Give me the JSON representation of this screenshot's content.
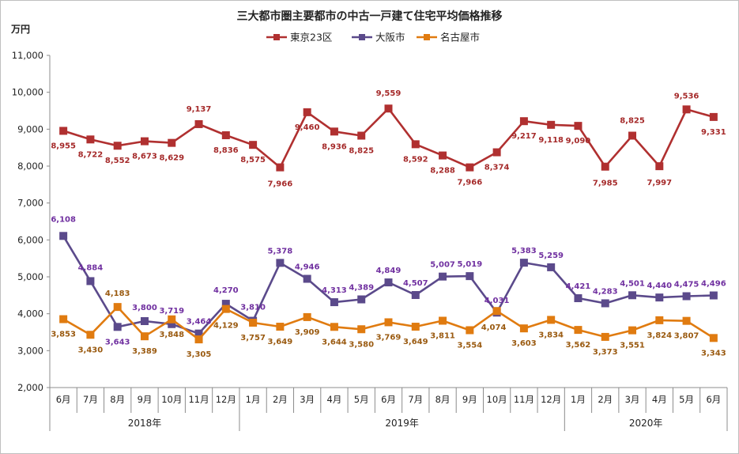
{
  "chart_data": {
    "type": "line",
    "title": "三大都市圏主要都市の中古一戸建て住宅平均価格推移",
    "ylabel": "万円",
    "ylim": [
      2000,
      11000
    ],
    "yticks": [
      "2,000",
      "3,000",
      "4,000",
      "5,000",
      "6,000",
      "7,000",
      "8,000",
      "9,000",
      "10,000",
      "11,000"
    ],
    "yticks_values": [
      2000,
      3000,
      4000,
      5000,
      6000,
      7000,
      8000,
      9000,
      10000,
      11000
    ],
    "grid": false,
    "legend_position": "top",
    "months": [
      "6月",
      "7月",
      "8月",
      "9月",
      "10月",
      "11月",
      "12月",
      "1月",
      "2月",
      "3月",
      "4月",
      "5月",
      "6月",
      "7月",
      "8月",
      "9月",
      "10月",
      "11月",
      "12月",
      "1月",
      "2月",
      "3月",
      "4月",
      "5月",
      "6月"
    ],
    "years": [
      {
        "label": "2018年",
        "start": 0,
        "end": 6
      },
      {
        "label": "2019年",
        "start": 7,
        "end": 18
      },
      {
        "label": "2020年",
        "start": 19,
        "end": 24
      }
    ],
    "series": [
      {
        "name": "東京23区",
        "color": "#b03030",
        "label_color": "#a52a2a",
        "values": [
          8955,
          8722,
          8552,
          8673,
          8629,
          9137,
          8836,
          8575,
          7966,
          9460,
          8936,
          8825,
          9559,
          8592,
          8288,
          7966,
          8374,
          9217,
          9118,
          9090,
          7985,
          8825,
          7997,
          9536,
          9331
        ],
        "labels": [
          "8,955",
          "8,722",
          "8,552",
          "8,673",
          "8,629",
          "9,137",
          "8,836",
          "8,575",
          "7,966",
          "9,460",
          "8,936",
          "8,825",
          "9,559",
          "8,592",
          "8,288",
          "7,966",
          "8,374",
          "9,217",
          "9,118",
          "9,090",
          "7,985",
          "8,825",
          "7,997",
          "9,536",
          "9,331"
        ]
      },
      {
        "name": "大阪市",
        "color": "#5b4a8b",
        "label_color": "#7030a0",
        "values": [
          6108,
          4884,
          3643,
          3800,
          3719,
          3464,
          4270,
          3810,
          5378,
          4946,
          4313,
          4389,
          4849,
          4507,
          5007,
          5019,
          4031,
          5383,
          5259,
          4421,
          4283,
          4501,
          4440,
          4475,
          4496
        ],
        "labels": [
          "6,108",
          "4,884",
          "3,643",
          "3,800",
          "3,719",
          "3,464",
          "4,270",
          "3,810",
          "5,378",
          "4,946",
          "4,313",
          "4,389",
          "4,849",
          "4,507",
          "5,007",
          "5,019",
          "4,031",
          "5,383",
          "5,259",
          "4,421",
          "4,283",
          "4,501",
          "4,440",
          "4,475",
          "4,496"
        ]
      },
      {
        "name": "名古屋市",
        "color": "#e07b10",
        "label_color": "#9a5a10",
        "values": [
          3853,
          3430,
          4183,
          3389,
          3848,
          3305,
          4129,
          3757,
          3649,
          3909,
          3644,
          3580,
          3769,
          3649,
          3811,
          3554,
          4074,
          3603,
          3834,
          3562,
          3373,
          3551,
          3824,
          3807,
          3343
        ],
        "labels": [
          "3,853",
          "3,430",
          "4,183",
          "3,389",
          "3,848",
          "3,305",
          "4,129",
          "3,757",
          "3,649",
          "3,909",
          "3,644",
          "3,580",
          "3,769",
          "3,649",
          "3,811",
          "3,554",
          "4,074",
          "3,603",
          "3,834",
          "3,562",
          "3,373",
          "3,551",
          "3,824",
          "3,807",
          "3,343"
        ]
      }
    ]
  }
}
